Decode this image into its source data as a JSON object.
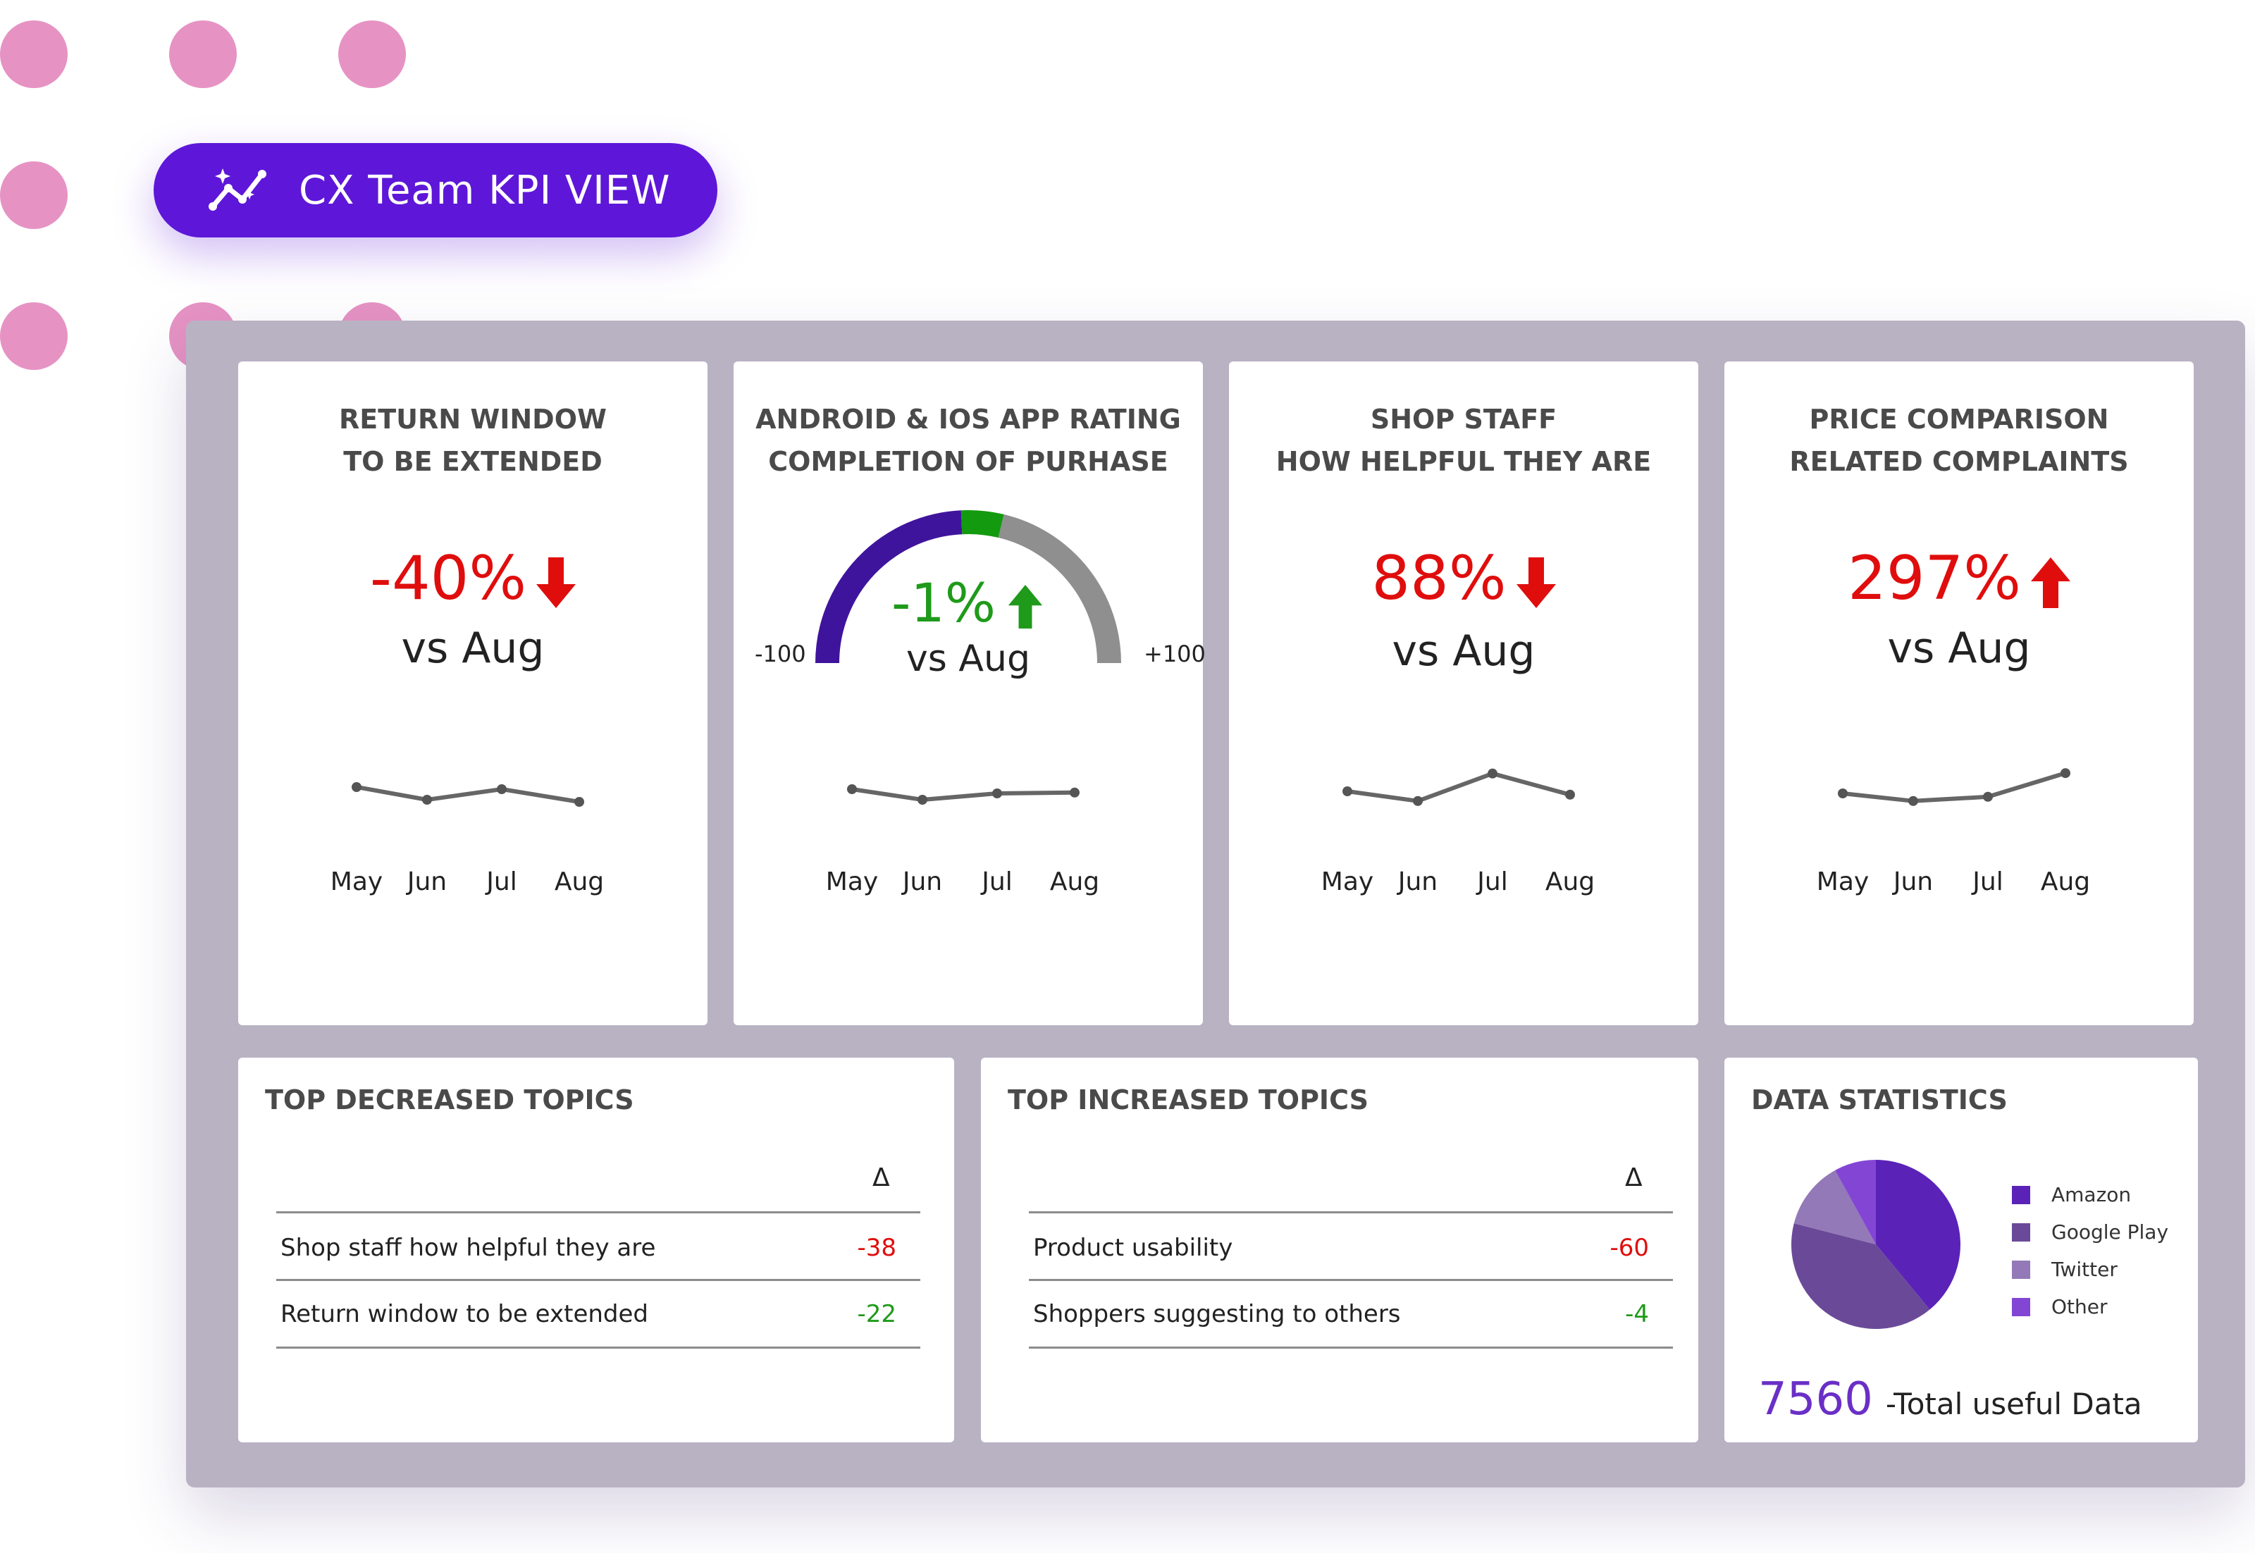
{
  "header": {
    "title": "CX Team KPI VIEW",
    "icon": "sparkle-trend-icon"
  },
  "colors": {
    "accent": "#5e17d8",
    "decor_dots": "#e693c4",
    "panel": "#b9b2c3",
    "negative": "#e00d0d",
    "positive": "#1f9a1a"
  },
  "kpis": [
    {
      "title_line1": "RETURN WINDOW",
      "title_line2": "TO BE EXTENDED",
      "value": "-40%",
      "trend": "down",
      "comparison": "vs Aug",
      "chart_data": {
        "type": "line",
        "categories": [
          "May",
          "Jun",
          "Jul",
          "Aug"
        ],
        "values": [
          0.6,
          0.3,
          0.55,
          0.25
        ]
      }
    },
    {
      "title_line1": "ANDROID & IOS APP RATING",
      "title_line2": "COMPLETION OF  PURHASE",
      "value": "-1%",
      "trend": "up",
      "comparison": "vs Aug",
      "gauge": {
        "min_label": "-100",
        "max_label": "+100",
        "min": -100,
        "max": 100,
        "value": -1
      },
      "chart_data": {
        "type": "line",
        "categories": [
          "May",
          "Jun",
          "Jul",
          "Aug"
        ],
        "values": [
          0.55,
          0.3,
          0.45,
          0.47
        ]
      }
    },
    {
      "title_line1": "SHOP STAFF",
      "title_line2": "HOW HELPFUL THEY ARE",
      "value": "88%",
      "trend": "down",
      "comparison": "vs Aug",
      "chart_data": {
        "type": "line",
        "categories": [
          "May",
          "Jun",
          "Jul",
          "Aug"
        ],
        "values": [
          0.5,
          0.27,
          0.92,
          0.42
        ]
      }
    },
    {
      "title_line1": "PRICE COMPARISON",
      "title_line2": "RELATED COMPLAINTS",
      "value": "297%",
      "trend": "up",
      "comparison": "vs Aug",
      "chart_data": {
        "type": "line",
        "categories": [
          "May",
          "Jun",
          "Jul",
          "Aug"
        ],
        "values": [
          0.45,
          0.27,
          0.37,
          0.93
        ]
      }
    }
  ],
  "decreased": {
    "title": "TOP DECREASED TOPICS",
    "delta_header": "Δ",
    "rows": [
      {
        "topic": "Shop staff how helpful they are",
        "delta": "-38",
        "color": "#e00d0d"
      },
      {
        "topic": "Return window to be extended",
        "delta": "-22",
        "color": "#1f9a1a"
      }
    ]
  },
  "increased": {
    "title": "TOP INCREASED TOPICS",
    "delta_header": "Δ",
    "rows": [
      {
        "topic": "Product usability",
        "delta": "-60",
        "color": "#e00d0d"
      },
      {
        "topic": "Shoppers suggesting to others",
        "delta": "-4",
        "color": "#1f9a1a"
      }
    ]
  },
  "statistics": {
    "title": "DATA  STATISTICS",
    "total_value": "7560",
    "total_label": "-Total useful Data",
    "chart_data": {
      "type": "pie",
      "slices": [
        {
          "label": "Amazon",
          "value": 39,
          "color": "#5b22b8"
        },
        {
          "label": "Google Play",
          "value": 40,
          "color": "#6a4a98"
        },
        {
          "label": "Twitter",
          "value": 13,
          "color": "#9379b8"
        },
        {
          "label": "Other",
          "value": 8,
          "color": "#8345d4"
        }
      ]
    }
  }
}
